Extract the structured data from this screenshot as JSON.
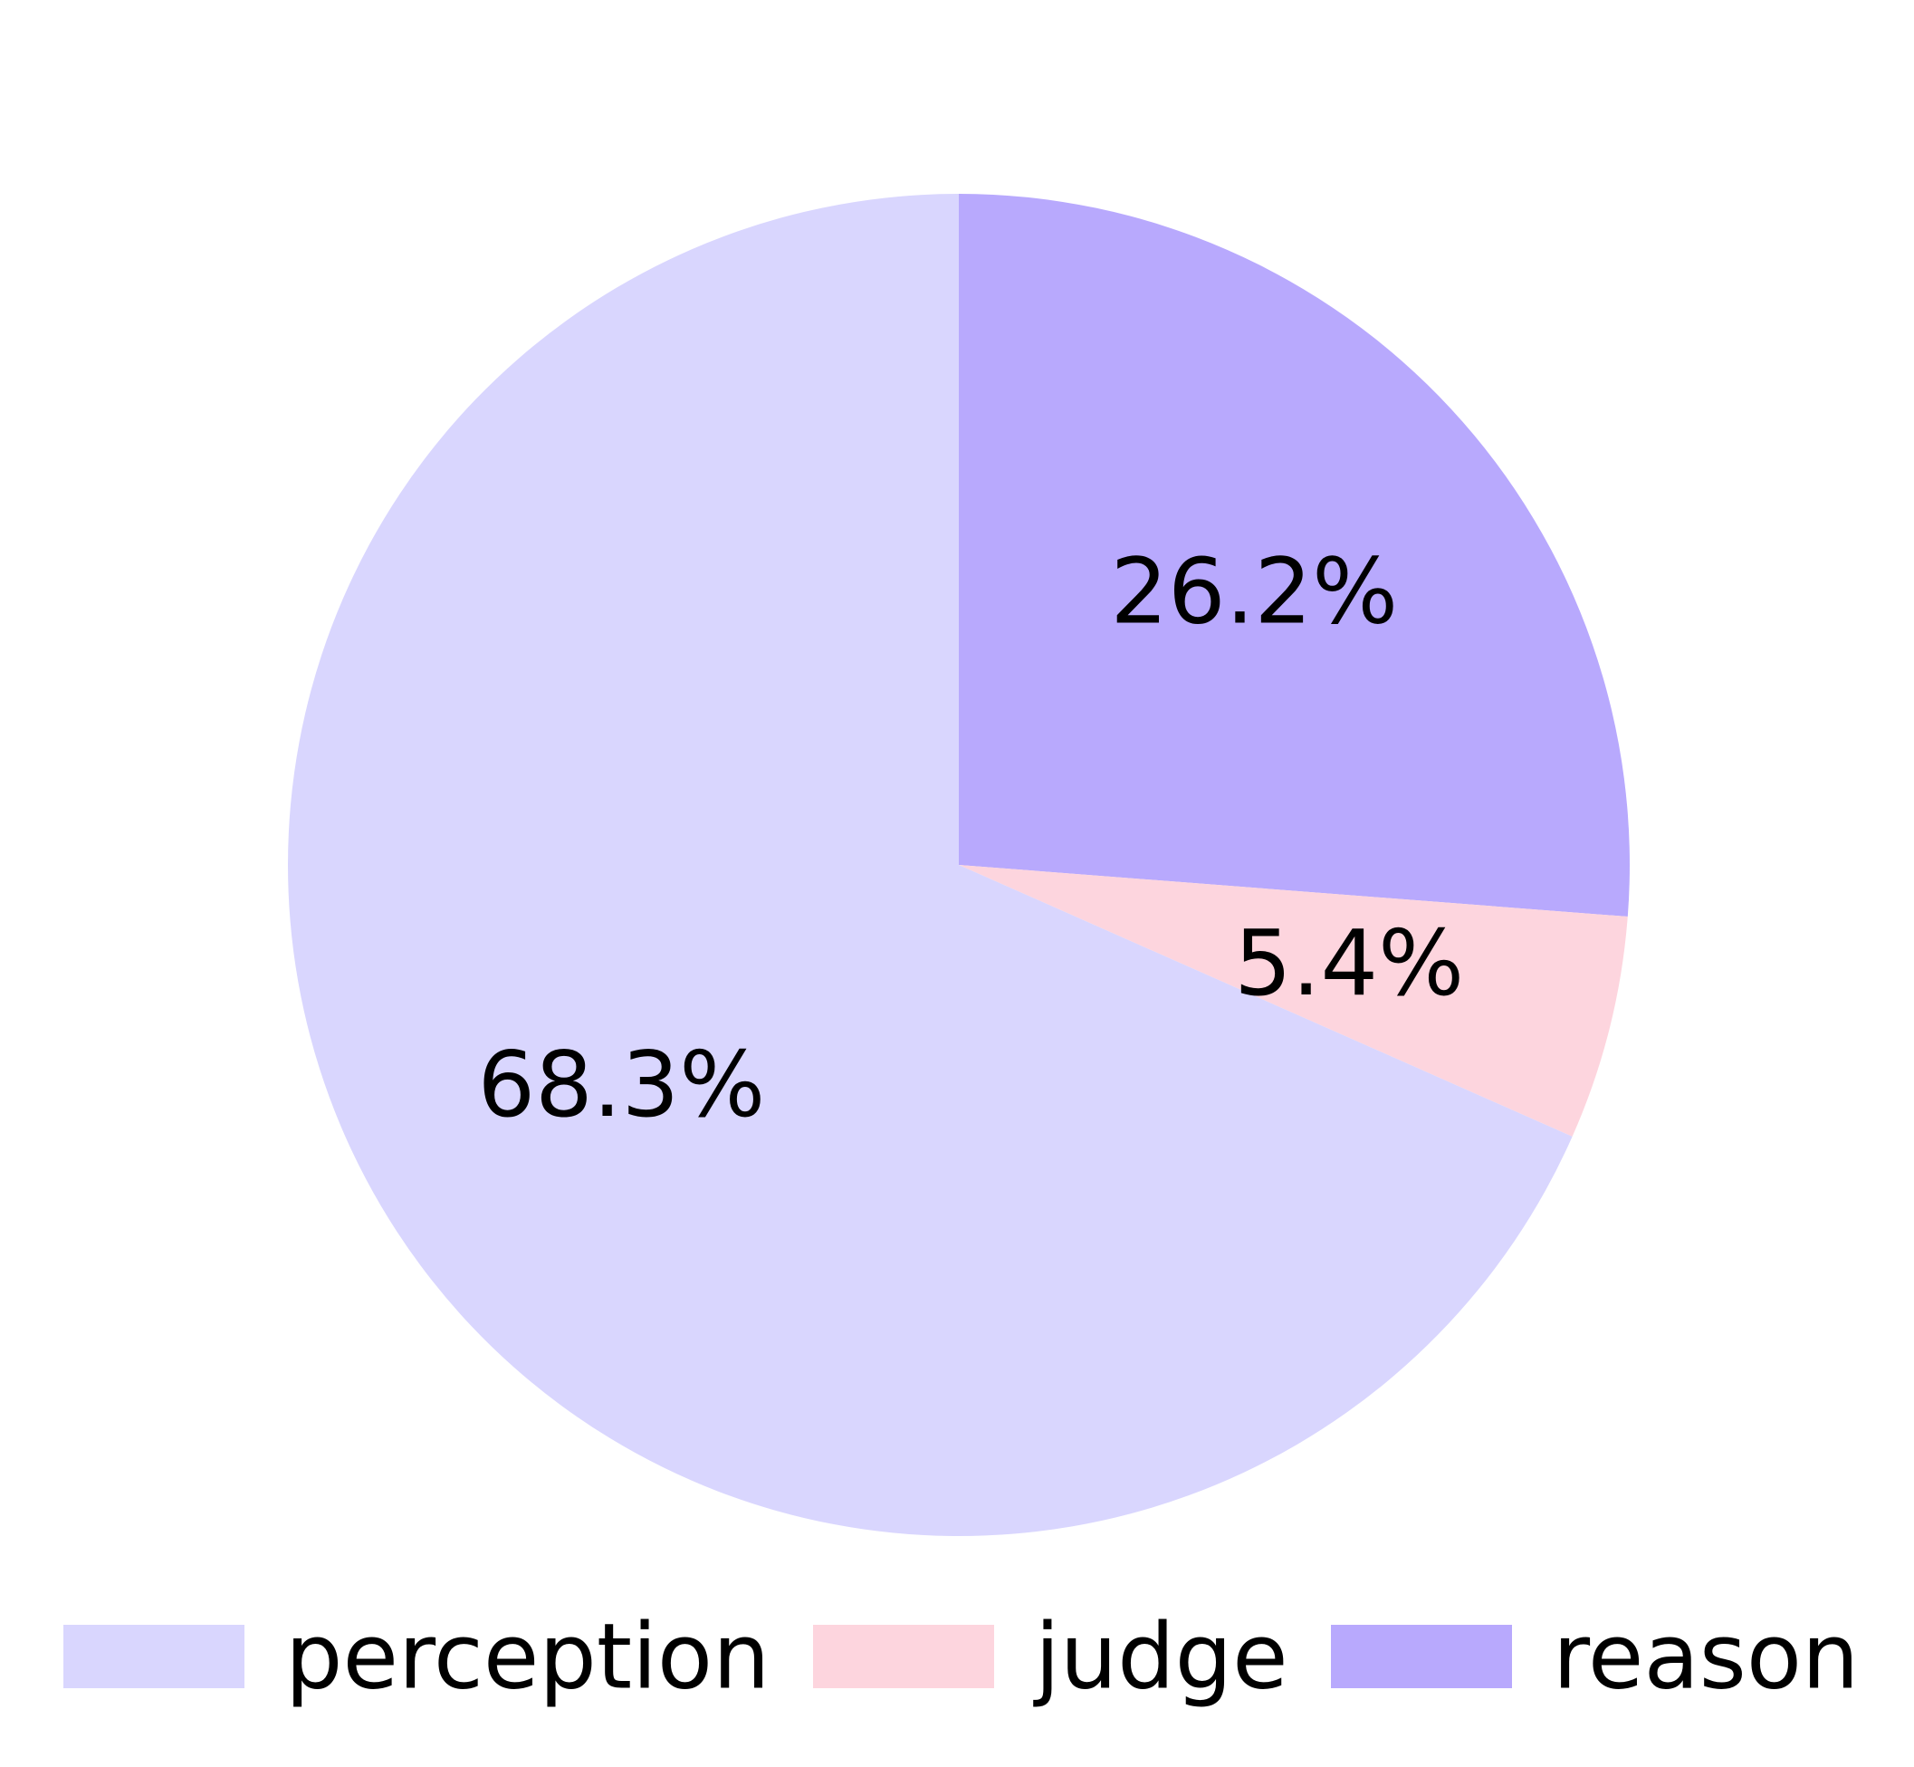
{
  "chart_data": {
    "type": "pie",
    "title": "",
    "start_angle_deg": 90,
    "direction": "clockwise",
    "legend_position": "bottom",
    "slices": [
      {
        "label": "reason",
        "value": 26.2,
        "display": "26.2%",
        "color": "#b8a9fd"
      },
      {
        "label": "judge",
        "value": 5.4,
        "display": "5.4%",
        "color": "#fdd5de"
      },
      {
        "label": "perception",
        "value": 68.3,
        "display": "68.3%",
        "color": "#d9d6fe"
      }
    ],
    "legend": [
      {
        "label": "perception",
        "color": "#d9d6fe"
      },
      {
        "label": "judge",
        "color": "#fdd5de"
      },
      {
        "label": "reason",
        "color": "#b8a9fd"
      }
    ]
  }
}
